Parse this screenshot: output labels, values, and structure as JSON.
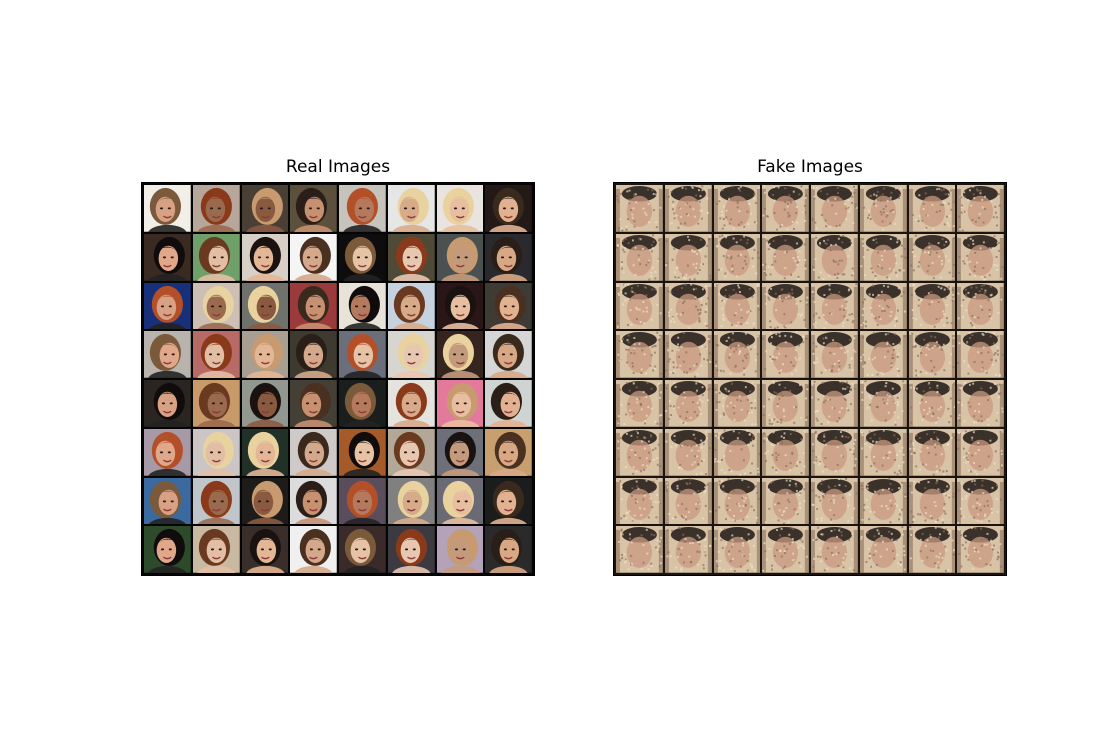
{
  "figure": {
    "panels": [
      {
        "id": "real",
        "title": "Real Images",
        "rows": 8,
        "cols": 8
      },
      {
        "id": "fake",
        "title": "Fake Images",
        "rows": 8,
        "cols": 8
      }
    ]
  },
  "colors": {
    "real_backgrounds": [
      "#f2efe9",
      "#b7a79a",
      "#4a3f35",
      "#5c4f3b",
      "#c6c3bd",
      "#e6e6e6",
      "#e9e4df",
      "#231a18",
      "#3a2a22",
      "#6fa06a",
      "#d8cfc6",
      "#f5f5f5",
      "#0e0c0c",
      "#4f4a35",
      "#4b5050",
      "#2a2a2e",
      "#18307a",
      "#cdbfb4",
      "#6f726c",
      "#9a3a3a",
      "#e8e3d8",
      "#c7d2e1",
      "#2a1616",
      "#3e3a34",
      "#b9b3ad",
      "#b86a66",
      "#a89f92",
      "#3f3a30",
      "#6b6f7b",
      "#d7d5d0",
      "#36241e",
      "#d6d6d6",
      "#2a2520",
      "#c89a6a",
      "#92978f",
      "#444035",
      "#1a1e1c",
      "#e5e3de",
      "#e37a9c",
      "#cfd3d2",
      "#a899a6",
      "#cbc6c5",
      "#223128",
      "#cfcac8",
      "#a55a2a",
      "#b3a898",
      "#6d7079",
      "#c8a070",
      "#3a6aa0",
      "#bfc5c8",
      "#1e1c1a",
      "#dcdcdc",
      "#5a4e5c",
      "#808080",
      "#6a6a74",
      "#1b1c1c",
      "#2d4a2a",
      "#c9b9a0",
      "#3a2e2a",
      "#f0f0f0",
      "#3a2a2a",
      "#3a3a40",
      "#b3a2b8",
      "#2a2a2a"
    ],
    "real_skin": [
      "#d9a184",
      "#e2b190",
      "#c49a7c",
      "#d7ab8a",
      "#e6c3a5",
      "#c79071",
      "#e3b696",
      "#9a6a4e",
      "#e0a78a",
      "#d8a885",
      "#e7bfa0",
      "#e8c7b0",
      "#b57a5e",
      "#d4a88a",
      "#8a5a40",
      "#e2bfa4"
    ],
    "real_hair": [
      "#6a3a20",
      "#c79a70",
      "#3a2a1e",
      "#7a5a3a",
      "#e8d2a0",
      "#1a1210",
      "#2a1e18",
      "#100c0c",
      "#8a3a1a",
      "#e9d29e",
      "#4a3020",
      "#b3502a"
    ],
    "fake_palette": {
      "bg": "#d8c3a6",
      "hair": "#1e1814",
      "skin": "#c99a80",
      "noise1": "#efe2c8",
      "noise2": "#8a6e5a"
    }
  }
}
